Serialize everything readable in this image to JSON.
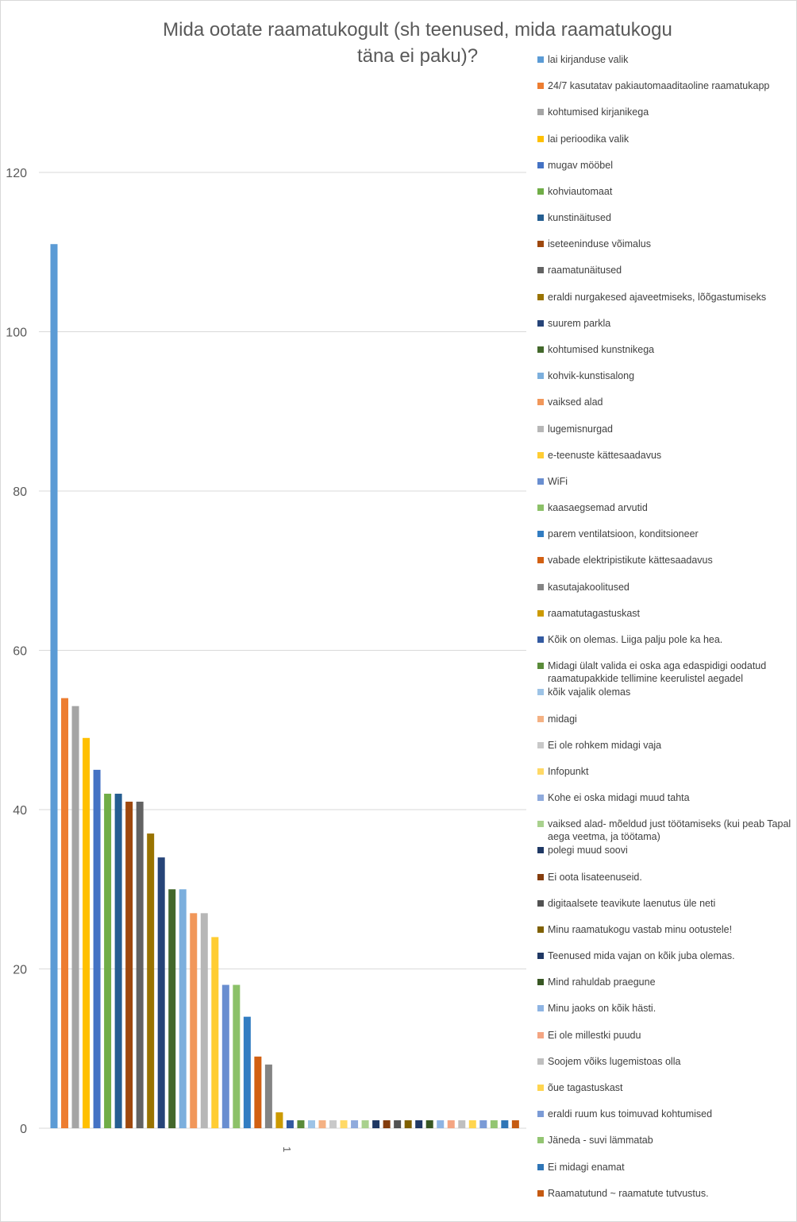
{
  "chart_data": {
    "type": "bar",
    "title": "Mida ootate raamatukogult (sh teenused, mida raamatukogu\ntäna ei paku)?",
    "categories": [
      "1"
    ],
    "ylim": [
      0,
      120
    ],
    "yticks": [
      0,
      20,
      40,
      60,
      80,
      100,
      120
    ],
    "grid": true,
    "legend_position": "right",
    "series": [
      {
        "name": "lai kirjanduse valik",
        "value": 111,
        "color": "#5B9BD5"
      },
      {
        "name": "24/7 kasutatav pakiautomaaditaoline raamatukapp",
        "value": 54,
        "color": "#ED7D31"
      },
      {
        "name": "kohtumised kirjanikega",
        "value": 53,
        "color": "#A5A5A5"
      },
      {
        "name": "lai perioodika valik",
        "value": 49,
        "color": "#FFC000"
      },
      {
        "name": "mugav mööbel",
        "value": 45,
        "color": "#4472C4"
      },
      {
        "name": "kohviautomaat",
        "value": 42,
        "color": "#70AD47"
      },
      {
        "name": "kunstinäitused",
        "value": 42,
        "color": "#255E91"
      },
      {
        "name": "iseteeninduse võimalus",
        "value": 41,
        "color": "#9E480E"
      },
      {
        "name": "raamatunäitused",
        "value": 41,
        "color": "#636363"
      },
      {
        "name": "eraldi nurgakesed ajaveetmiseks, lõõgastumiseks",
        "value": 37,
        "color": "#997300"
      },
      {
        "name": "suurem parkla",
        "value": 34,
        "color": "#264478"
      },
      {
        "name": "kohtumised kunstnikega",
        "value": 30,
        "color": "#43682B"
      },
      {
        "name": "kohvik-kunstisalong",
        "value": 30,
        "color": "#7CAFDD"
      },
      {
        "name": "vaiksed alad",
        "value": 27,
        "color": "#F1975A"
      },
      {
        "name": "lugemisnurgad",
        "value": 27,
        "color": "#B7B7B7"
      },
      {
        "name": "e-teenuste kättesaadavus",
        "value": 24,
        "color": "#FFCD33"
      },
      {
        "name": "WiFi",
        "value": 18,
        "color": "#698ED0"
      },
      {
        "name": "kaasaegsemad arvutid",
        "value": 18,
        "color": "#8CC168"
      },
      {
        "name": "parem ventilatsioon, konditsioneer",
        "value": 14,
        "color": "#327DC2"
      },
      {
        "name": "vabade elektripistikute kättesaadavus",
        "value": 9,
        "color": "#D26012"
      },
      {
        "name": "kasutajakoolitused",
        "value": 8,
        "color": "#848484"
      },
      {
        "name": "raamatutagastuskast",
        "value": 2,
        "color": "#CC9A00"
      },
      {
        "name": "Kõik on olemas. Liiga palju pole ka hea.",
        "value": 1,
        "color": "#335AA1"
      },
      {
        "name": "Midagi ülalt valida ei oska aga edaspidigi oodatud raamatupakkide tellimine keerulistel aegadel",
        "value": 1,
        "color": "#5A8B39"
      },
      {
        "name": "kõik vajalik olemas",
        "value": 1,
        "color": "#9DC3E6"
      },
      {
        "name": "midagi",
        "value": 1,
        "color": "#F4B183"
      },
      {
        "name": "Ei ole rohkem midagi vaja",
        "value": 1,
        "color": "#C9C9C9"
      },
      {
        "name": "Infopunkt",
        "value": 1,
        "color": "#FFD966"
      },
      {
        "name": "Kohe ei oska midagi muud tahta",
        "value": 1,
        "color": "#8FAADC"
      },
      {
        "name": "vaiksed alad- mõeldud just töötamiseks (kui peab Tapal aega veetma, ja töötama)",
        "value": 1,
        "color": "#A9D18E"
      },
      {
        "name": "polegi muud soovi",
        "value": 1,
        "color": "#1F3864"
      },
      {
        "name": "Ei oota lisateenuseid.",
        "value": 1,
        "color": "#843C0C"
      },
      {
        "name": "digitaalsete teavikute laenutus üle neti",
        "value": 1,
        "color": "#525252"
      },
      {
        "name": "Minu raamatukogu vastab minu ootustele!",
        "value": 1,
        "color": "#7F6000"
      },
      {
        "name": "Teenused mida vajan on kõik juba olemas.",
        "value": 1,
        "color": "#203864"
      },
      {
        "name": "Mind rahuldab praegune",
        "value": 1,
        "color": "#385723"
      },
      {
        "name": "Minu jaoks on kõik hästi.",
        "value": 1,
        "color": "#8EB4E3"
      },
      {
        "name": "Ei ole millestki puudu",
        "value": 1,
        "color": "#F4A582"
      },
      {
        "name": "Soojem võiks lugemistoas olla",
        "value": 1,
        "color": "#BFBFBF"
      },
      {
        "name": "õue tagastuskast",
        "value": 1,
        "color": "#FFD54F"
      },
      {
        "name": "eraldi ruum kus toimuvad kohtumised",
        "value": 1,
        "color": "#7B9BD6"
      },
      {
        "name": "Jäneda - suvi lämmatab",
        "value": 1,
        "color": "#93C572"
      },
      {
        "name": "Ei midagi enamat",
        "value": 1,
        "color": "#2E75B6"
      },
      {
        "name": "Raamatutund ~ raamatute tutvustus.",
        "value": 1,
        "color": "#C55A11"
      }
    ]
  }
}
